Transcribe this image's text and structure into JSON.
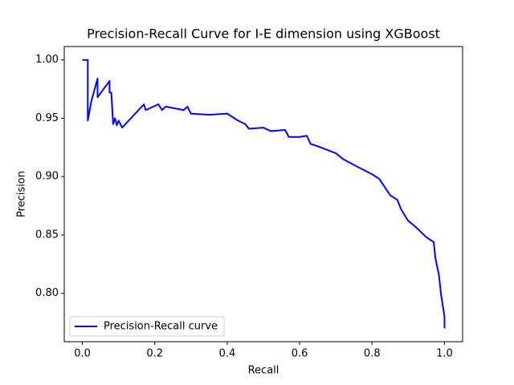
{
  "chart_data": {
    "type": "line",
    "title": "Precision-Recall Curve for I-E dimension using XGBoost",
    "xlabel": "Recall",
    "ylabel": "Precision",
    "xlim": [
      -0.05,
      1.05
    ],
    "ylim": [
      0.7585,
      1.0115
    ],
    "xticks": [
      {
        "value": 0,
        "label": "0.0"
      },
      0.2,
      0.4,
      0.6,
      0.8,
      {
        "value": 1,
        "label": "1.0"
      }
    ],
    "yticks": [
      {
        "value": 0.8,
        "label": "0.80"
      },
      0.85,
      {
        "value": 0.9,
        "label": "0.90"
      },
      0.95,
      {
        "value": 1,
        "label": "1.00"
      }
    ],
    "grid": false,
    "legend": "lower left",
    "series": [
      {
        "name": "Precision-Recall curve",
        "color": "#0000ff",
        "x": [
          0,
          0.015,
          0.015,
          0.025,
          0.042,
          0.042,
          0.075,
          0.075,
          0.08,
          0.085,
          0.09,
          0.095,
          0.1,
          0.11,
          0.17,
          0.175,
          0.21,
          0.22,
          0.23,
          0.28,
          0.29,
          0.3,
          0.35,
          0.4,
          0.43,
          0.45,
          0.46,
          0.5,
          0.52,
          0.56,
          0.57,
          0.6,
          0.62,
          0.63,
          0.65,
          0.7,
          0.72,
          0.75,
          0.8,
          0.82,
          0.85,
          0.87,
          0.88,
          0.9,
          0.92,
          0.95,
          0.97,
          0.975,
          0.985,
          0.99,
          0.995,
          1.0,
          1.0
        ],
        "values": [
          1.0,
          1.0,
          0.948,
          0.965,
          0.984,
          0.968,
          0.982,
          0.972,
          0.972,
          0.945,
          0.95,
          0.944,
          0.948,
          0.942,
          0.962,
          0.957,
          0.962,
          0.957,
          0.96,
          0.957,
          0.96,
          0.954,
          0.953,
          0.954,
          0.948,
          0.945,
          0.941,
          0.942,
          0.939,
          0.94,
          0.934,
          0.934,
          0.935,
          0.928,
          0.926,
          0.92,
          0.915,
          0.91,
          0.902,
          0.898,
          0.884,
          0.88,
          0.872,
          0.862,
          0.857,
          0.848,
          0.844,
          0.83,
          0.815,
          0.8,
          0.79,
          0.78,
          0.77
        ]
      }
    ]
  }
}
